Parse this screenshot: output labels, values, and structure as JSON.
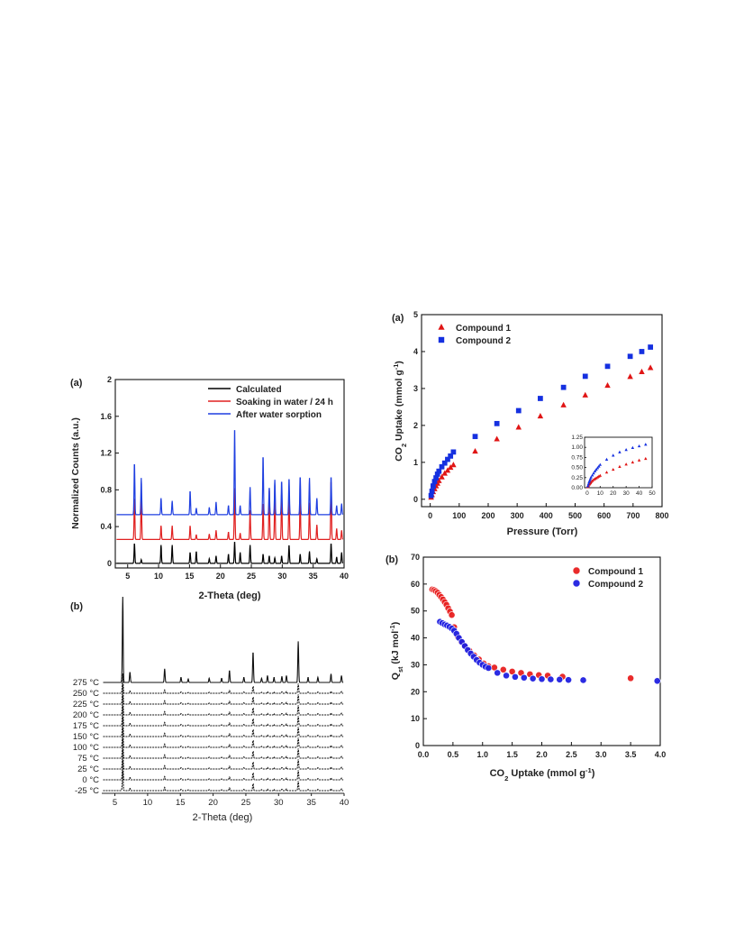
{
  "chart_data": [
    {
      "id": "xrd_a",
      "type": "line",
      "panel_label": "(a)",
      "xlabel": "2-Theta (deg)",
      "ylabel": "Normalized Counts (a.u.)",
      "xlim": [
        3,
        40
      ],
      "ylim": [
        -0.05,
        2.0
      ],
      "xticks": [
        5,
        10,
        15,
        20,
        25,
        30,
        35,
        40
      ],
      "yticks": [
        0.0,
        0.4,
        0.8,
        1.2,
        1.6,
        2.0
      ],
      "legend": "top-right",
      "peaks": [
        6.1,
        7.2,
        10.4,
        12.2,
        15.1,
        16.1,
        18.2,
        19.3,
        21.3,
        22.3,
        23.2,
        24.8,
        26.9,
        27.9,
        28.8,
        29.9,
        31.1,
        32.9,
        34.4,
        35.6,
        37.9,
        38.8,
        39.6
      ],
      "series": [
        {
          "name": "Calculated",
          "color": "#000000",
          "baseline": 0.0,
          "heights": [
            0.22,
            0.04,
            0.2,
            0.2,
            0.12,
            0.13,
            0.05,
            0.08,
            0.1,
            0.24,
            0.12,
            0.2,
            0.1,
            0.08,
            0.06,
            0.08,
            0.2,
            0.1,
            0.13,
            0.05,
            0.22,
            0.07,
            0.12
          ]
        },
        {
          "name": "Soaking in water / 24 h",
          "color": "#e02020",
          "baseline": 0.26,
          "heights": [
            0.46,
            0.48,
            0.15,
            0.15,
            0.15,
            0.05,
            0.06,
            0.1,
            0.08,
            0.58,
            0.07,
            0.32,
            0.4,
            0.55,
            0.55,
            0.5,
            0.55,
            0.47,
            0.4,
            0.16,
            0.65,
            0.12,
            0.1
          ]
        },
        {
          "name": "After water sorption",
          "color": "#1f3fe0",
          "baseline": 0.53,
          "heights": [
            0.57,
            0.4,
            0.18,
            0.15,
            0.26,
            0.07,
            0.08,
            0.14,
            0.1,
            0.96,
            0.1,
            0.3,
            0.65,
            0.3,
            0.38,
            0.37,
            0.4,
            0.42,
            0.4,
            0.18,
            0.42,
            0.1,
            0.12
          ]
        }
      ]
    },
    {
      "id": "xrd_b",
      "type": "line",
      "panel_label": "(b)",
      "xlabel": "2-Theta (deg)",
      "xlim": [
        3,
        40
      ],
      "xticks": [
        5,
        10,
        15,
        20,
        25,
        30,
        35,
        40
      ],
      "series_labels": [
        "275 °C",
        "250 °C",
        "225 °C",
        "200 °C",
        "175 °C",
        "150 °C",
        "100 °C",
        "75 °C",
        "25 °C",
        "0 °C",
        "-25 °C"
      ],
      "peaks": [
        6.2,
        7.3,
        12.6,
        15.1,
        16.2,
        19.4,
        21.3,
        22.5,
        24.7,
        26.1,
        27.4,
        28.3,
        29.3,
        30.5,
        31.2,
        33.0,
        34.5,
        36.0,
        38.0,
        39.6
      ],
      "relative_heights": [
        1.0,
        0.12,
        0.16,
        0.06,
        0.04,
        0.05,
        0.05,
        0.14,
        0.06,
        0.36,
        0.05,
        0.08,
        0.06,
        0.07,
        0.08,
        0.48,
        0.06,
        0.06,
        0.1,
        0.08
      ]
    },
    {
      "id": "co2_a",
      "type": "scatter",
      "panel_label": "(a)",
      "xlabel": "Pressure (Torr)",
      "ylabel_parts": [
        "CO",
        "2",
        " Uptake (mmol g",
        "-1",
        ")"
      ],
      "xlim": [
        -30,
        800
      ],
      "ylim": [
        -0.2,
        5
      ],
      "xticks": [
        0,
        100,
        200,
        300,
        400,
        500,
        600,
        700,
        800
      ],
      "yticks": [
        0,
        1,
        2,
        3,
        4,
        5
      ],
      "legend": "top-left",
      "series": [
        {
          "name": "Compound 1",
          "marker": "triangle",
          "color": "#e01515",
          "x": [
            3,
            6,
            10,
            15,
            20,
            25,
            30,
            40,
            50,
            60,
            70,
            80,
            155,
            230,
            305,
            380,
            460,
            535,
            612,
            690,
            730,
            760
          ],
          "y": [
            0.05,
            0.12,
            0.2,
            0.28,
            0.36,
            0.43,
            0.5,
            0.6,
            0.7,
            0.78,
            0.86,
            0.93,
            1.3,
            1.63,
            1.95,
            2.25,
            2.55,
            2.82,
            3.08,
            3.32,
            3.45,
            3.56
          ]
        },
        {
          "name": "Compound 2",
          "marker": "square",
          "color": "#1530e0",
          "x": [
            3,
            6,
            10,
            15,
            20,
            25,
            30,
            40,
            50,
            60,
            70,
            80,
            155,
            230,
            305,
            380,
            460,
            535,
            612,
            690,
            730,
            760
          ],
          "y": [
            0.1,
            0.22,
            0.36,
            0.48,
            0.58,
            0.68,
            0.76,
            0.88,
            0.98,
            1.08,
            1.17,
            1.28,
            1.7,
            2.05,
            2.4,
            2.73,
            3.03,
            3.33,
            3.6,
            3.87,
            4.0,
            4.12
          ]
        }
      ],
      "inset": {
        "xlim": [
          -2,
          50
        ],
        "ylim": [
          0,
          1.25
        ],
        "xticks": [
          0,
          10,
          20,
          30,
          40,
          50
        ],
        "yticks": [
          0.0,
          0.25,
          0.5,
          0.75,
          1.0,
          1.25
        ],
        "ytick_labels": [
          "0.00",
          "0.25",
          "0.50",
          "0.75",
          "1.00",
          "1.25"
        ],
        "series": [
          {
            "name": "Compound 1",
            "marker": "triangle",
            "color": "#e01515",
            "x": [
              0.5,
              1,
              1.5,
              2,
              2.5,
              3,
              4,
              5,
              6,
              7,
              8,
              9,
              10,
              15,
              20,
              25,
              30,
              35,
              40,
              45
            ],
            "y": [
              0.02,
              0.05,
              0.08,
              0.1,
              0.12,
              0.14,
              0.17,
              0.2,
              0.22,
              0.24,
              0.26,
              0.28,
              0.3,
              0.38,
              0.45,
              0.52,
              0.58,
              0.63,
              0.68,
              0.72
            ]
          },
          {
            "name": "Compound 2",
            "marker": "triangle",
            "color": "#1530e0",
            "x": [
              0.5,
              1,
              1.5,
              2,
              2.5,
              3,
              4,
              5,
              6,
              7,
              8,
              9,
              10,
              15,
              20,
              25,
              30,
              35,
              40,
              45
            ],
            "y": [
              0.04,
              0.09,
              0.14,
              0.18,
              0.22,
              0.26,
              0.31,
              0.36,
              0.41,
              0.45,
              0.49,
              0.53,
              0.57,
              0.7,
              0.8,
              0.88,
              0.94,
              0.99,
              1.03,
              1.07
            ]
          }
        ]
      }
    },
    {
      "id": "qst_b",
      "type": "scatter",
      "panel_label": "(b)",
      "xlabel_parts": [
        "CO",
        "2",
        " Uptake (mmol g",
        "-1",
        ")"
      ],
      "ylabel_parts": [
        "Q",
        "st",
        " (kJ mol",
        "-1",
        ")"
      ],
      "xlim": [
        0,
        4.0
      ],
      "ylim": [
        0,
        70
      ],
      "xticks": [
        0.0,
        0.5,
        1.0,
        1.5,
        2.0,
        2.5,
        3.0,
        3.5,
        4.0
      ],
      "xtick_labels": [
        "0.0",
        "0.5",
        "1.0",
        "1.5",
        "2.0",
        "2.5",
        "3.0",
        "3.5",
        "4.0"
      ],
      "yticks": [
        0,
        10,
        20,
        30,
        40,
        50,
        60,
        70
      ],
      "legend": "top-right",
      "series": [
        {
          "name": "Compound 1",
          "marker": "circle",
          "color": "#e82020",
          "x": [
            0.15,
            0.18,
            0.21,
            0.24,
            0.27,
            0.3,
            0.33,
            0.36,
            0.39,
            0.42,
            0.45,
            0.48,
            0.52,
            0.58,
            0.64,
            0.7,
            0.78,
            0.86,
            0.94,
            1.02,
            1.1,
            1.2,
            1.35,
            1.5,
            1.65,
            1.8,
            1.95,
            2.1,
            2.35,
            3.5
          ],
          "y": [
            58,
            57.8,
            57.4,
            56.8,
            56.0,
            55.2,
            54.3,
            53.3,
            52.3,
            51.0,
            49.8,
            48.5,
            44,
            40.5,
            38.5,
            37,
            35.2,
            33.5,
            32,
            30.5,
            29.5,
            29,
            28.2,
            27.5,
            27,
            26.5,
            26.2,
            26,
            25.6,
            25
          ]
        },
        {
          "name": "Compound 2",
          "marker": "circle",
          "color": "#2020e0",
          "x": [
            0.28,
            0.32,
            0.36,
            0.4,
            0.44,
            0.48,
            0.52,
            0.56,
            0.6,
            0.65,
            0.7,
            0.75,
            0.8,
            0.85,
            0.9,
            0.95,
            1.0,
            1.05,
            1.1,
            1.25,
            1.4,
            1.55,
            1.7,
            1.85,
            2.0,
            2.15,
            2.3,
            2.45,
            2.7,
            3.95
          ],
          "y": [
            46,
            45.5,
            45,
            44.6,
            44.1,
            43.5,
            42.7,
            41.5,
            40,
            38.5,
            37,
            35.5,
            34.2,
            33,
            31.8,
            30.8,
            30,
            29.3,
            28.8,
            27,
            26,
            25.5,
            25.2,
            24.9,
            24.7,
            24.6,
            24.5,
            24.4,
            24.3,
            24
          ]
        }
      ]
    }
  ]
}
